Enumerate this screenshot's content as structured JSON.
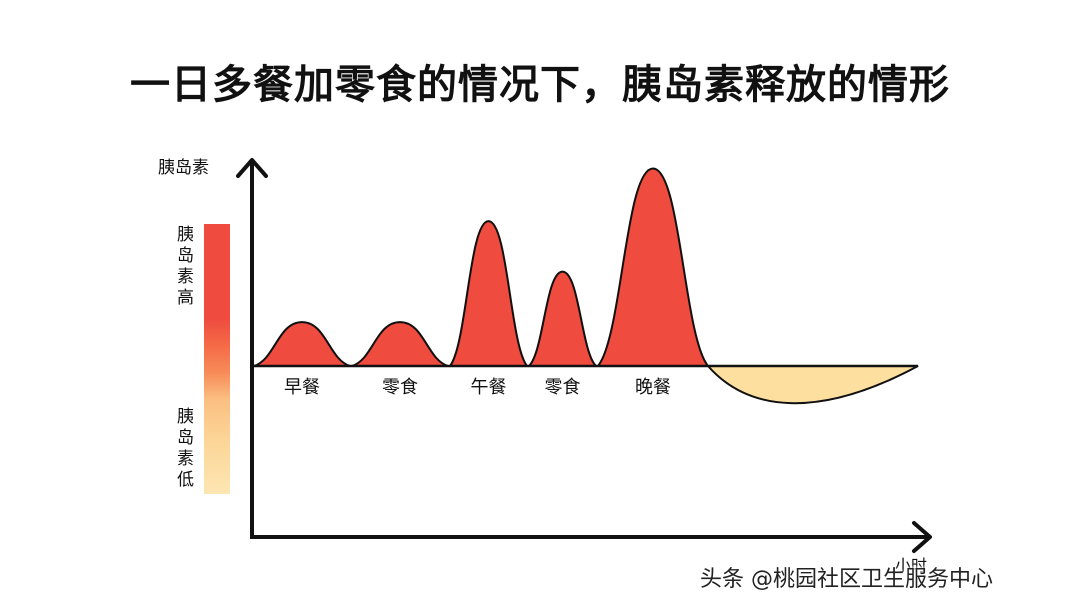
{
  "title": "一日多餐加零食的情况下，胰岛素释放的情形",
  "y_axis_label": "胰岛素",
  "x_axis_label": "小时",
  "legend": {
    "high_label": "胰岛素高",
    "low_label": "胰岛素低"
  },
  "colors": {
    "high": "#ef4b3f",
    "low": "#fde0a0",
    "axis": "#111111"
  },
  "meals": [
    {
      "label": "早餐",
      "level": 0.2
    },
    {
      "label": "零食",
      "level": 0.2
    },
    {
      "label": "午餐",
      "level": 0.66
    },
    {
      "label": "零食",
      "level": 0.43
    },
    {
      "label": "晚餐",
      "level": 0.9
    }
  ],
  "fasting_dip_level": -0.25,
  "watermark": "头条 @桃园社区卫生服务中心"
}
